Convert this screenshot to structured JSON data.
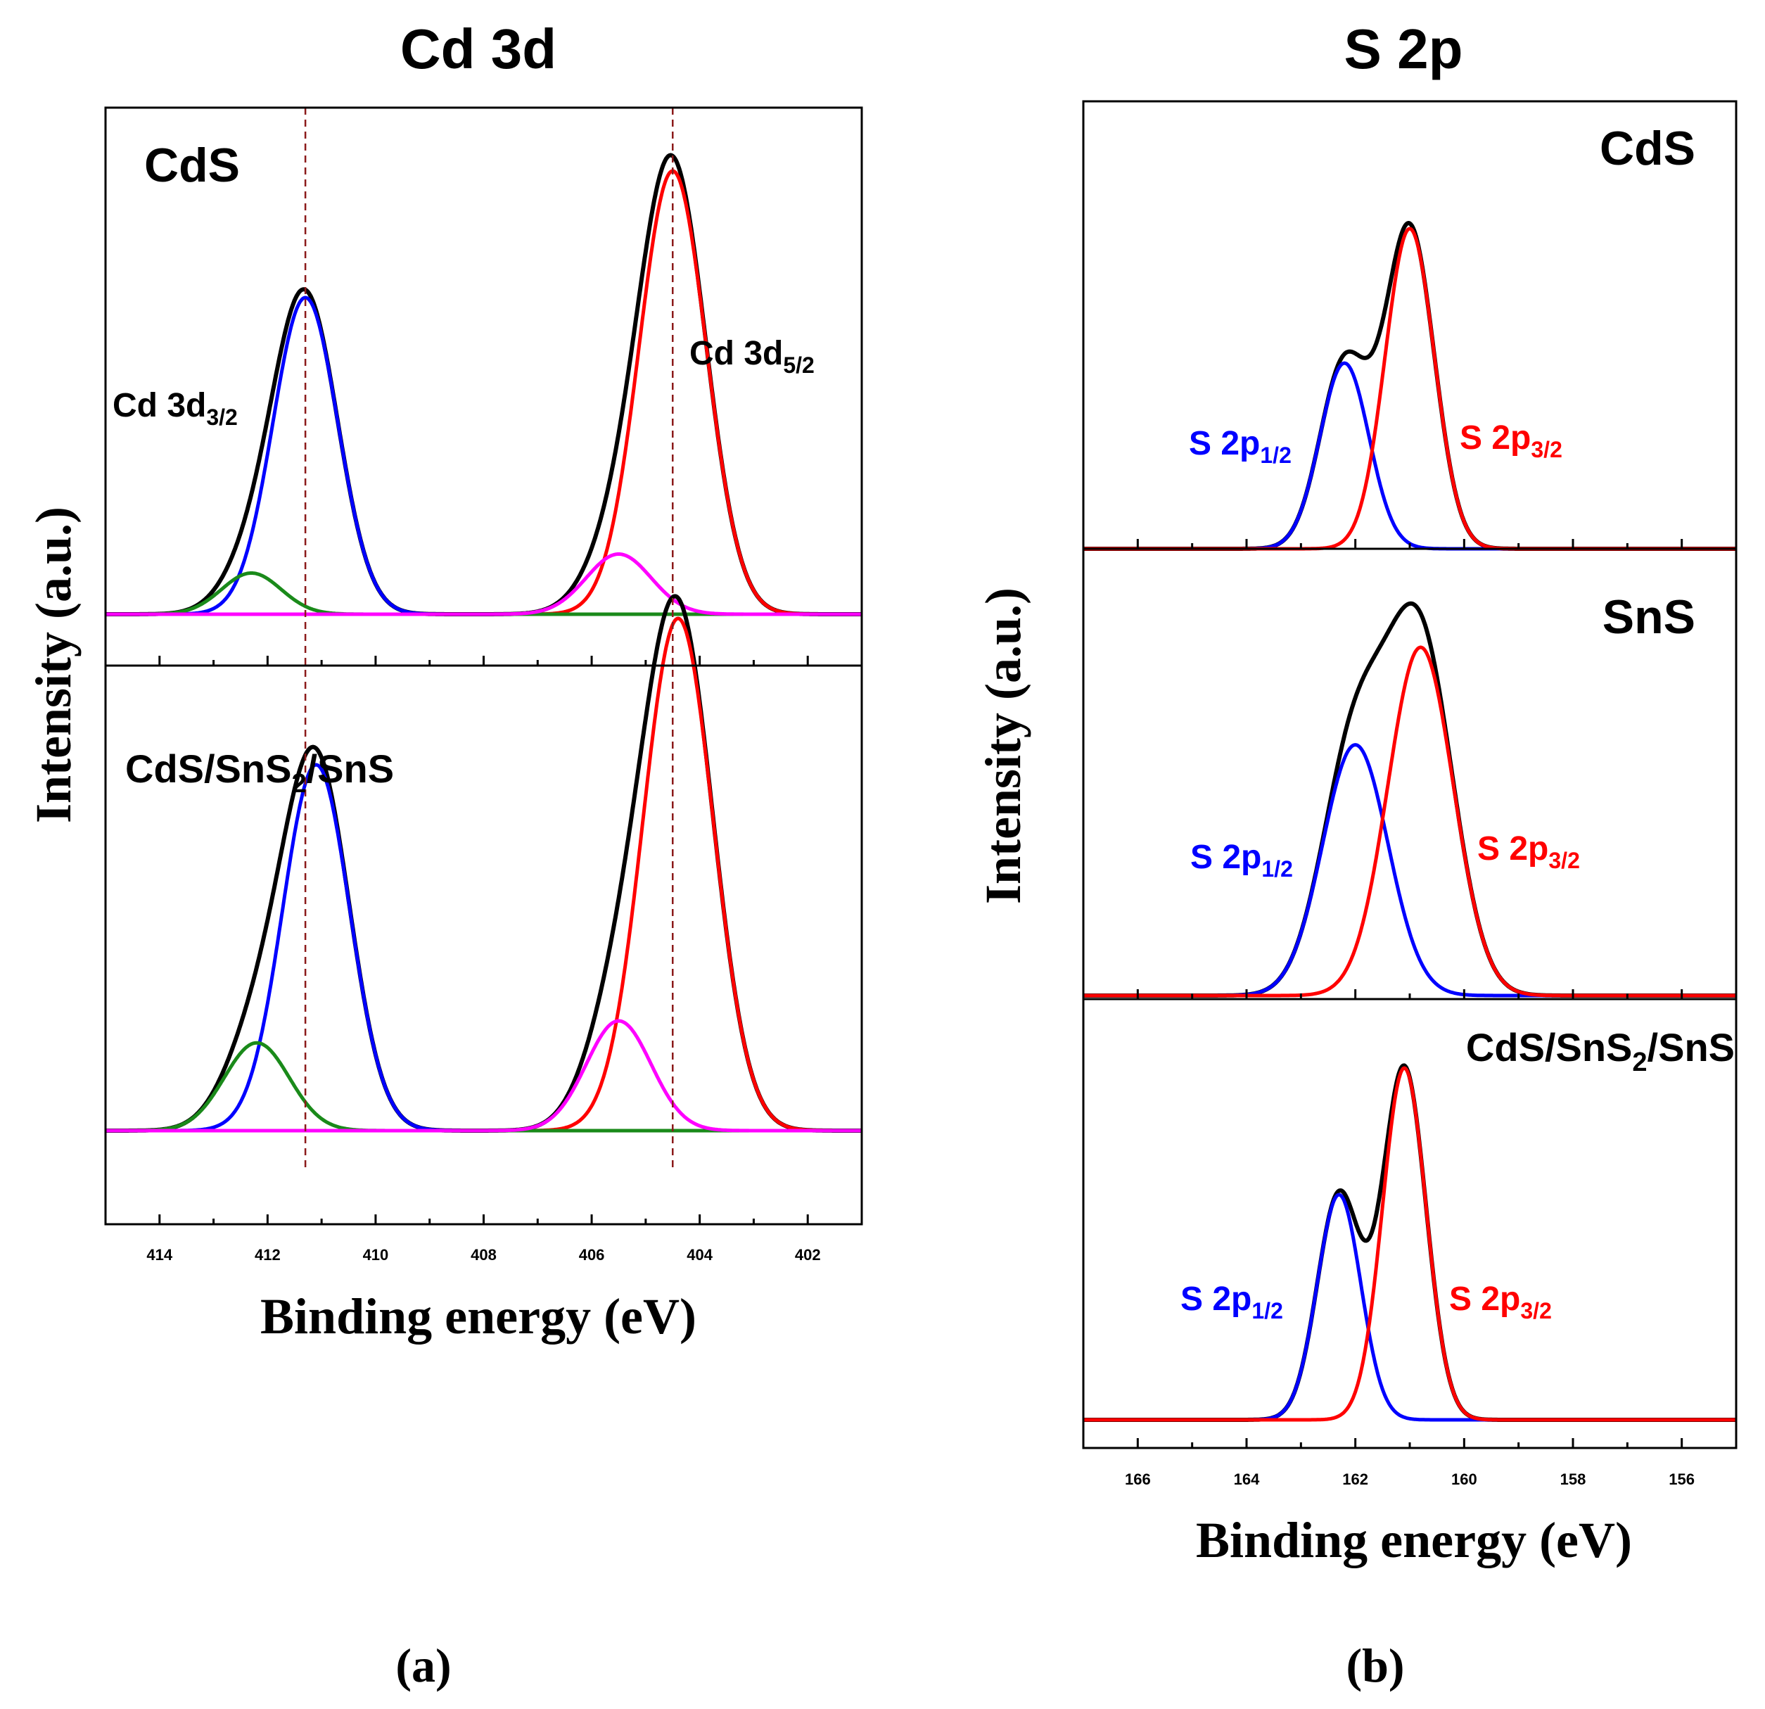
{
  "chart_data": [
    {
      "id": "a",
      "type": "line",
      "title": "Cd 3d",
      "panel_label": "(a)",
      "xlabel": "Binding energy (eV)",
      "ylabel": "Intensity (a.u.)",
      "xlim": [
        415,
        401
      ],
      "x_reversed": true,
      "xticks": [
        414,
        412,
        410,
        408,
        406,
        404,
        402
      ],
      "reference_lines": [
        411.3,
        404.5
      ],
      "reference_line_color": "#8b1a1a",
      "colors": {
        "envelope": "#000000",
        "cd32": "#0000ff",
        "cd52": "#ff0000",
        "pink": "#ff00ff",
        "green": "#1a8a1a"
      },
      "panels": [
        {
          "name": "CdS",
          "labels": {
            "sample": "CdS",
            "peak_left": {
              "base": "Cd 3d",
              "sub": "3/2"
            },
            "peak_right": {
              "base": "Cd 3d",
              "sub": "5/2"
            }
          },
          "components": [
            {
              "name": "Cd 3d3/2",
              "color": "#0000ff",
              "center": 411.3,
              "sigma": 0.6,
              "height": 1.0
            },
            {
              "name": "Cd 3d5/2",
              "color": "#ff0000",
              "center": 404.5,
              "sigma": 0.62,
              "height": 1.4
            },
            {
              "name": "shoulder 3d3/2",
              "color": "#1a8a1a",
              "center": 412.3,
              "sigma": 0.55,
              "height": 0.13
            },
            {
              "name": "shoulder 3d5/2",
              "color": "#ff00ff",
              "center": 405.5,
              "sigma": 0.6,
              "height": 0.19
            }
          ]
        },
        {
          "name": "CdS/SnS2/SnS",
          "labels": {
            "sample": {
              "a": "CdS/SnS",
              "sub": "2",
              "b": "/SnS"
            }
          },
          "components": [
            {
              "name": "Cd 3d3/2",
              "color": "#0000ff",
              "center": 411.1,
              "sigma": 0.62,
              "height": 1.0
            },
            {
              "name": "Cd 3d5/2",
              "color": "#ff0000",
              "center": 404.4,
              "sigma": 0.65,
              "height": 1.4
            },
            {
              "name": "shoulder 3d3/2",
              "color": "#1a8a1a",
              "center": 412.2,
              "sigma": 0.6,
              "height": 0.24
            },
            {
              "name": "shoulder 3d5/2",
              "color": "#ff00ff",
              "center": 405.5,
              "sigma": 0.6,
              "height": 0.3
            }
          ]
        }
      ]
    },
    {
      "id": "b",
      "type": "line",
      "title": "S 2p",
      "panel_label": "(b)",
      "xlabel": "Binding energy (eV)",
      "ylabel": "Intensity (a.u.)",
      "xlim": [
        167,
        155
      ],
      "x_reversed": true,
      "xticks": [
        166,
        164,
        162,
        160,
        158,
        156
      ],
      "colors": {
        "envelope": "#000000",
        "p12": "#0000ff",
        "p32": "#ff0000"
      },
      "panels": [
        {
          "name": "CdS",
          "labels": {
            "sample": "CdS",
            "p12": {
              "base": "S 2p",
              "sub": "1/2"
            },
            "p32": {
              "base": "S 2p",
              "sub": "3/2"
            }
          },
          "components": [
            {
              "name": "S 2p1/2",
              "color": "#0000ff",
              "center": 162.2,
              "sigma": 0.45,
              "height": 0.58
            },
            {
              "name": "S 2p3/2",
              "color": "#ff0000",
              "center": 161.0,
              "sigma": 0.45,
              "height": 1.0
            }
          ]
        },
        {
          "name": "SnS",
          "labels": {
            "sample": "SnS",
            "p12": {
              "base": "S 2p",
              "sub": "1/2"
            },
            "p32": {
              "base": "S 2p",
              "sub": "3/2"
            }
          },
          "components": [
            {
              "name": "S 2p1/2",
              "color": "#0000ff",
              "center": 162.0,
              "sigma": 0.6,
              "height": 0.72
            },
            {
              "name": "S 2p3/2",
              "color": "#ff0000",
              "center": 160.8,
              "sigma": 0.6,
              "height": 1.0
            }
          ]
        },
        {
          "name": "CdS/SnS2/SnS",
          "labels": {
            "sample": {
              "a": "CdS/SnS",
              "sub": "2",
              "b": "/SnS"
            },
            "p12": {
              "base": "S 2p",
              "sub": "1/2"
            },
            "p32": {
              "base": "S 2p",
              "sub": "3/2"
            }
          },
          "components": [
            {
              "name": "S 2p1/2",
              "color": "#0000ff",
              "center": 162.3,
              "sigma": 0.4,
              "height": 0.64
            },
            {
              "name": "S 2p3/2",
              "color": "#ff0000",
              "center": 161.1,
              "sigma": 0.4,
              "height": 1.0
            }
          ]
        }
      ]
    }
  ]
}
